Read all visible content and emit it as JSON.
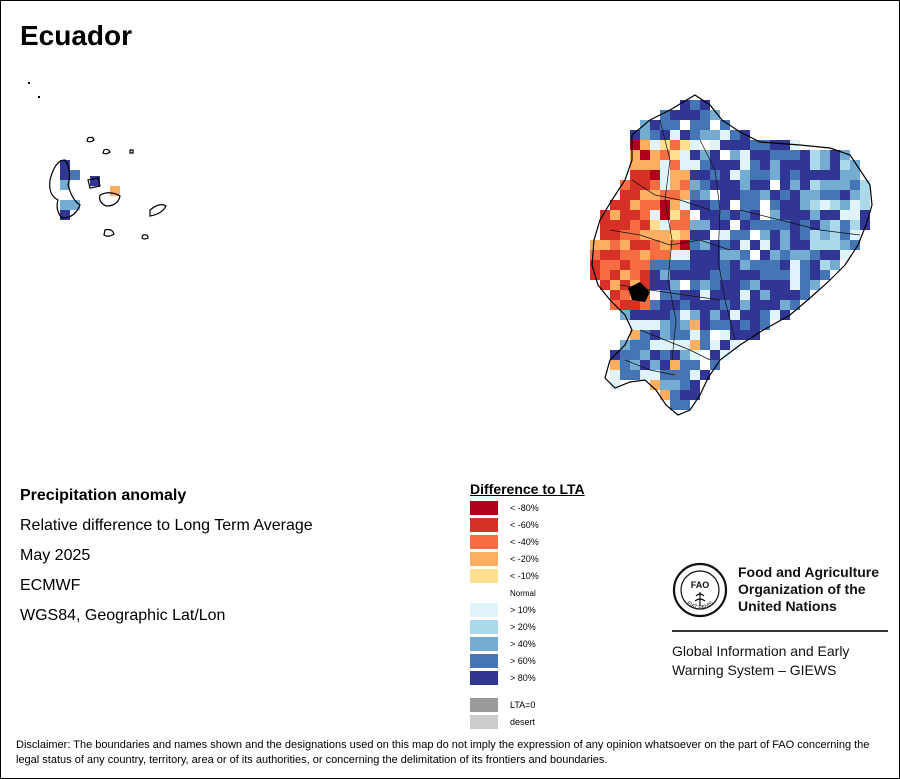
{
  "title": "Ecuador",
  "info": {
    "line1": "Precipitation anomaly",
    "line2": "Relative difference to Long Term Average",
    "line3": "May 2025",
    "line4": "ECMWF",
    "line5": "WGS84, Geographic Lat/Lon"
  },
  "legend": {
    "title": "Difference to LTA",
    "items": [
      {
        "label": "< -80%",
        "color": "#b0001e"
      },
      {
        "label": "< -60%",
        "color": "#d73027"
      },
      {
        "label": "< -40%",
        "color": "#f46d43"
      },
      {
        "label": "< -20%",
        "color": "#fdae61"
      },
      {
        "label": "< -10%",
        "color": "#fee090"
      },
      {
        "label": "Normal",
        "color": "#ffffff"
      },
      {
        "label": "> 10%",
        "color": "#e0f3f8"
      },
      {
        "label": "> 20%",
        "color": "#abd9e9"
      },
      {
        "label": "> 40%",
        "color": "#74add1"
      },
      {
        "label": "> 60%",
        "color": "#4575b4"
      },
      {
        "label": "> 80%",
        "color": "#313695"
      }
    ],
    "extra": [
      {
        "label": "LTA=0",
        "color": "#999999"
      },
      {
        "label": "desert",
        "color": "#cccccc"
      }
    ]
  },
  "logo": {
    "org_name": "Food and Agriculture Organization of the United Nations",
    "emblem_text": "FIAT PANIS",
    "emblem_letters": "FAO",
    "system_name": "Global Information and Early Warning System – GIEWS"
  },
  "disclaimer": "Disclaimer: The boundaries and names shown and the designations used on this map do not imply the expression of any opinion whatsoever on the part of FAO concerning the legal status of any country, territory, area or of its authorities, or concerning the delimitation of its frontiers and boundaries."
}
